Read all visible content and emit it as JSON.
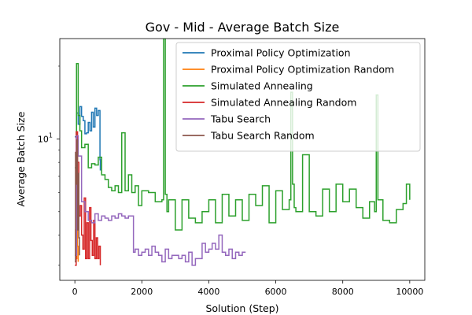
{
  "chart_data": {
    "type": "line",
    "title": "Gov - Mid - Average Batch Size",
    "xlabel": "Solution (Step)",
    "ylabel": "Average Batch Size",
    "xlim": [
      -450,
      10450
    ],
    "ylim": [
      2.6,
      26
    ],
    "yscale": "log",
    "grid": false,
    "legend_position": "top-right",
    "x_ticks": [
      0,
      2000,
      4000,
      6000,
      8000,
      10000
    ],
    "x_tick_labels": [
      "0",
      "2000",
      "4000",
      "6000",
      "8000",
      "10000"
    ],
    "y_ticks": [
      10
    ],
    "y_tick_labels": [
      "10"
    ],
    "series": [
      {
        "name": "Proximal Policy Optimization",
        "color": "#1f77b4",
        "x": [
          0,
          50,
          100,
          150,
          200,
          250,
          300,
          350,
          400,
          450,
          500,
          550,
          600,
          650,
          700,
          750,
          760
        ],
        "y": [
          10.2,
          12.8,
          11.5,
          13.6,
          12.4,
          11.9,
          10.5,
          10.6,
          11.7,
          10.8,
          12.9,
          11.2,
          13.4,
          12.5,
          13.1,
          8.2,
          7.4
        ]
      },
      {
        "name": "Proximal Policy Optimization Random",
        "color": "#ff7f0e",
        "x": [
          0,
          20,
          40,
          60,
          80,
          100
        ],
        "y": [
          3.3,
          4.2,
          3.2,
          4.8,
          3.6,
          3.1
        ]
      },
      {
        "name": "Simulated Annealing",
        "color": "#2ca02c",
        "x": [
          0,
          50,
          100,
          150,
          200,
          300,
          400,
          500,
          600,
          700,
          800,
          900,
          1000,
          1100,
          1200,
          1300,
          1400,
          1500,
          1600,
          1700,
          1800,
          1900,
          2000,
          2200,
          2400,
          2600,
          2650,
          2700,
          2750,
          2800,
          3000,
          3200,
          3400,
          3600,
          3800,
          4000,
          4200,
          4400,
          4600,
          4800,
          5000,
          5200,
          5400,
          5600,
          5800,
          6000,
          6200,
          6400,
          6450,
          6500,
          6550,
          6600,
          6800,
          7000,
          7200,
          7400,
          7600,
          7800,
          8000,
          8200,
          8400,
          8600,
          8800,
          8950,
          9000,
          9050,
          9200,
          9400,
          9600,
          9800,
          9900,
          10000
        ],
        "y": [
          7.6,
          20.5,
          12.5,
          10.8,
          9.2,
          9.5,
          7.6,
          7.9,
          7.8,
          8.4,
          7.1,
          6.8,
          6.3,
          6.1,
          6.4,
          6.0,
          10.6,
          6.1,
          7.1,
          6.0,
          6.4,
          5.3,
          6.1,
          6.0,
          5.5,
          5.6,
          30.7,
          5.9,
          5.0,
          5.6,
          4.2,
          5.6,
          4.7,
          4.5,
          5.0,
          5.6,
          4.5,
          5.9,
          4.8,
          5.6,
          4.6,
          5.9,
          5.3,
          6.4,
          4.5,
          6.1,
          5.1,
          5.6,
          15.6,
          6.5,
          5.2,
          5.0,
          8.6,
          5.0,
          4.8,
          6.2,
          5.0,
          6.5,
          5.5,
          6.2,
          5.2,
          4.7,
          5.5,
          5.0,
          15.2,
          5.6,
          4.6,
          4.5,
          5.1,
          5.4,
          6.5,
          5.6
        ]
      },
      {
        "name": "Simulated Annealing Random",
        "color": "#d62728",
        "x": [
          0,
          40,
          80,
          120,
          160,
          200,
          240,
          280,
          320,
          360,
          400,
          440,
          480,
          520,
          560,
          600,
          640,
          680,
          720,
          760
        ],
        "y": [
          3.0,
          10.7,
          8.0,
          4.8,
          5.3,
          4.0,
          3.5,
          5.7,
          3.2,
          4.5,
          3.2,
          5.2,
          3.8,
          3.3,
          4.6,
          3.2,
          3.9,
          3.2,
          3.6,
          3.0
        ]
      },
      {
        "name": "Tabu Search",
        "color": "#9467bd",
        "x": [
          0,
          50,
          100,
          200,
          300,
          400,
          500,
          600,
          700,
          800,
          900,
          1000,
          1100,
          1200,
          1300,
          1400,
          1500,
          1600,
          1700,
          1750,
          1800,
          1900,
          2000,
          2100,
          2200,
          2300,
          2400,
          2500,
          2600,
          2700,
          2800,
          2900,
          3000,
          3100,
          3200,
          3300,
          3400,
          3500,
          3600,
          3700,
          3800,
          3900,
          4000,
          4100,
          4200,
          4300,
          4400,
          4500,
          4600,
          4700,
          4800,
          4900,
          5000,
          5100
        ],
        "y": [
          3.3,
          10.3,
          8.5,
          5.5,
          5.0,
          4.6,
          4.5,
          4.9,
          4.6,
          4.8,
          4.7,
          4.6,
          4.8,
          4.7,
          4.9,
          4.8,
          4.7,
          4.8,
          4.8,
          3.4,
          3.5,
          3.3,
          3.4,
          3.5,
          3.3,
          3.6,
          3.4,
          3.3,
          3.1,
          3.5,
          3.2,
          3.3,
          3.3,
          3.2,
          3.3,
          3.1,
          3.4,
          3.0,
          3.2,
          3.2,
          3.7,
          3.4,
          3.5,
          3.7,
          3.5,
          4.0,
          3.4,
          3.3,
          3.5,
          3.2,
          3.4,
          3.3,
          3.4,
          3.4
        ]
      },
      {
        "name": "Tabu Search Random",
        "color": "#8c564b",
        "x": [
          0,
          20,
          40,
          60,
          80,
          100,
          120,
          140
        ],
        "y": [
          3.1,
          8.8,
          6.5,
          9.9,
          4.2,
          7.2,
          3.9,
          3.3
        ]
      }
    ]
  }
}
